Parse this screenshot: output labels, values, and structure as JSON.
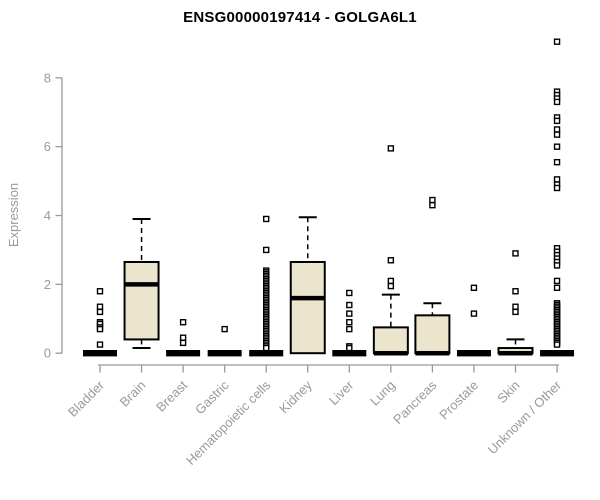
{
  "title": "ENSG00000197414 - GOLGA6L1",
  "chart_data": {
    "type": "boxplot",
    "title": "ENSG00000197414 - GOLGA6L1",
    "xlabel": "",
    "ylabel": "Expression",
    "ylim": [
      0,
      9.2
    ],
    "yticks": [
      0,
      2,
      4,
      6,
      8
    ],
    "grid": false,
    "legend": "none",
    "colors": {
      "box_fill": "#ece5cd",
      "box_stroke": "#000000",
      "axis_line": "#999999",
      "axis_text": "#9a9a9a",
      "title_text": "#000000",
      "background": "#ffffff"
    },
    "categories": [
      "Bladder",
      "Brain",
      "Breast",
      "Gastric",
      "Hematopoietic cells",
      "Kidney",
      "Liver",
      "Lung",
      "Pancreas",
      "Prostate",
      "Skin",
      "Unknown / Other"
    ],
    "boxes": [
      {
        "category": "Bladder",
        "q1": 0,
        "median": 0,
        "q3": 0,
        "whisker_low": 0,
        "whisker_high": 0,
        "outliers": [
          1.8,
          1.35,
          1.2,
          0.9,
          0.85,
          0.75,
          0.7,
          0.25
        ]
      },
      {
        "category": "Brain",
        "q1": 0.4,
        "median": 2.0,
        "q3": 2.65,
        "whisker_low": 0.15,
        "whisker_high": 3.9,
        "outliers": []
      },
      {
        "category": "Breast",
        "q1": 0,
        "median": 0,
        "q3": 0,
        "whisker_low": 0,
        "whisker_high": 0,
        "outliers": [
          0.9,
          0.45,
          0.3
        ]
      },
      {
        "category": "Gastric",
        "q1": 0,
        "median": 0,
        "q3": 0,
        "whisker_low": 0,
        "whisker_high": 0,
        "outliers": [
          0.7
        ]
      },
      {
        "category": "Hematopoietic cells",
        "q1": 0,
        "median": 0,
        "q3": 0,
        "whisker_low": 0,
        "whisker_high": 0,
        "outliers": [
          3.9,
          3.0,
          2.4,
          2.35,
          2.3,
          2.25,
          2.2,
          2.15,
          2.1,
          2.05,
          2.0,
          1.95,
          1.9,
          1.85,
          1.8,
          1.75,
          1.7,
          1.65,
          1.6,
          1.55,
          1.5,
          1.45,
          1.4,
          1.35,
          1.3,
          1.25,
          1.2,
          1.15,
          1.1,
          1.05,
          1.0,
          0.95,
          0.9,
          0.85,
          0.8,
          0.75,
          0.7,
          0.65,
          0.6,
          0.55,
          0.5,
          0.45,
          0.4,
          0.35,
          0.3,
          0.25,
          0.2,
          0.15
        ]
      },
      {
        "category": "Kidney",
        "q1": 0,
        "median": 1.6,
        "q3": 2.65,
        "whisker_low": 0,
        "whisker_high": 3.95,
        "outliers": []
      },
      {
        "category": "Liver",
        "q1": 0,
        "median": 0,
        "q3": 0,
        "whisker_low": 0,
        "whisker_high": 0,
        "outliers": [
          1.75,
          1.4,
          1.15,
          0.9,
          0.7,
          0.2,
          0.15
        ]
      },
      {
        "category": "Lung",
        "q1": 0,
        "median": 0,
        "q3": 0.75,
        "whisker_low": 0,
        "whisker_high": 1.7,
        "outliers": [
          5.95,
          2.7,
          2.1,
          1.95
        ]
      },
      {
        "category": "Pancreas",
        "q1": 0,
        "median": 0,
        "q3": 1.1,
        "whisker_low": 0,
        "whisker_high": 1.45,
        "outliers": [
          4.45,
          4.3
        ]
      },
      {
        "category": "Prostate",
        "q1": 0,
        "median": 0,
        "q3": 0,
        "whisker_low": 0,
        "whisker_high": 0,
        "outliers": [
          1.9,
          1.15
        ]
      },
      {
        "category": "Skin",
        "q1": 0,
        "median": 0,
        "q3": 0.15,
        "whisker_low": 0,
        "whisker_high": 0.4,
        "outliers": [
          2.9,
          1.8,
          1.35,
          1.2
        ]
      },
      {
        "category": "Unknown / Other",
        "q1": 0,
        "median": 0,
        "q3": 0,
        "whisker_low": 0,
        "whisker_high": 0,
        "outliers": [
          9.05,
          7.6,
          7.5,
          7.4,
          7.3,
          6.85,
          6.75,
          6.5,
          6.35,
          6.0,
          5.55,
          5.05,
          4.9,
          4.8,
          3.05,
          2.95,
          2.85,
          2.75,
          2.65,
          2.55,
          2.1,
          1.9,
          1.45,
          1.4,
          1.35,
          1.3,
          1.25,
          1.2,
          1.15,
          1.1,
          1.05,
          1.0,
          0.95,
          0.9,
          0.85,
          0.8,
          0.75,
          0.7,
          0.65,
          0.6,
          0.55,
          0.5,
          0.45,
          0.4,
          0.35,
          0.3,
          0.25
        ]
      }
    ]
  }
}
